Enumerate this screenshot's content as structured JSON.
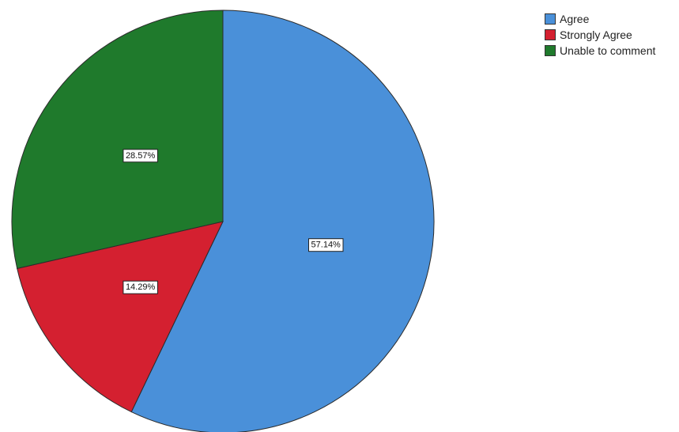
{
  "chart_data": {
    "type": "pie",
    "categories": [
      "Agree",
      "Strongly Agree",
      "Unable to comment"
    ],
    "values": [
      57.14,
      14.29,
      28.57
    ],
    "labels": [
      "57.14%",
      "14.29%",
      "28.57%"
    ],
    "colors": [
      "#4a90d9",
      "#d42030",
      "#1f7a2c"
    ],
    "start": "12 o'clock",
    "direction": "clockwise",
    "legend_position": "top-right"
  },
  "legend": [
    {
      "label": "Agree",
      "color": "#4a90d9"
    },
    {
      "label": "Strongly Agree",
      "color": "#d42030"
    },
    {
      "label": "Unable to comment",
      "color": "#1f7a2c"
    }
  ]
}
